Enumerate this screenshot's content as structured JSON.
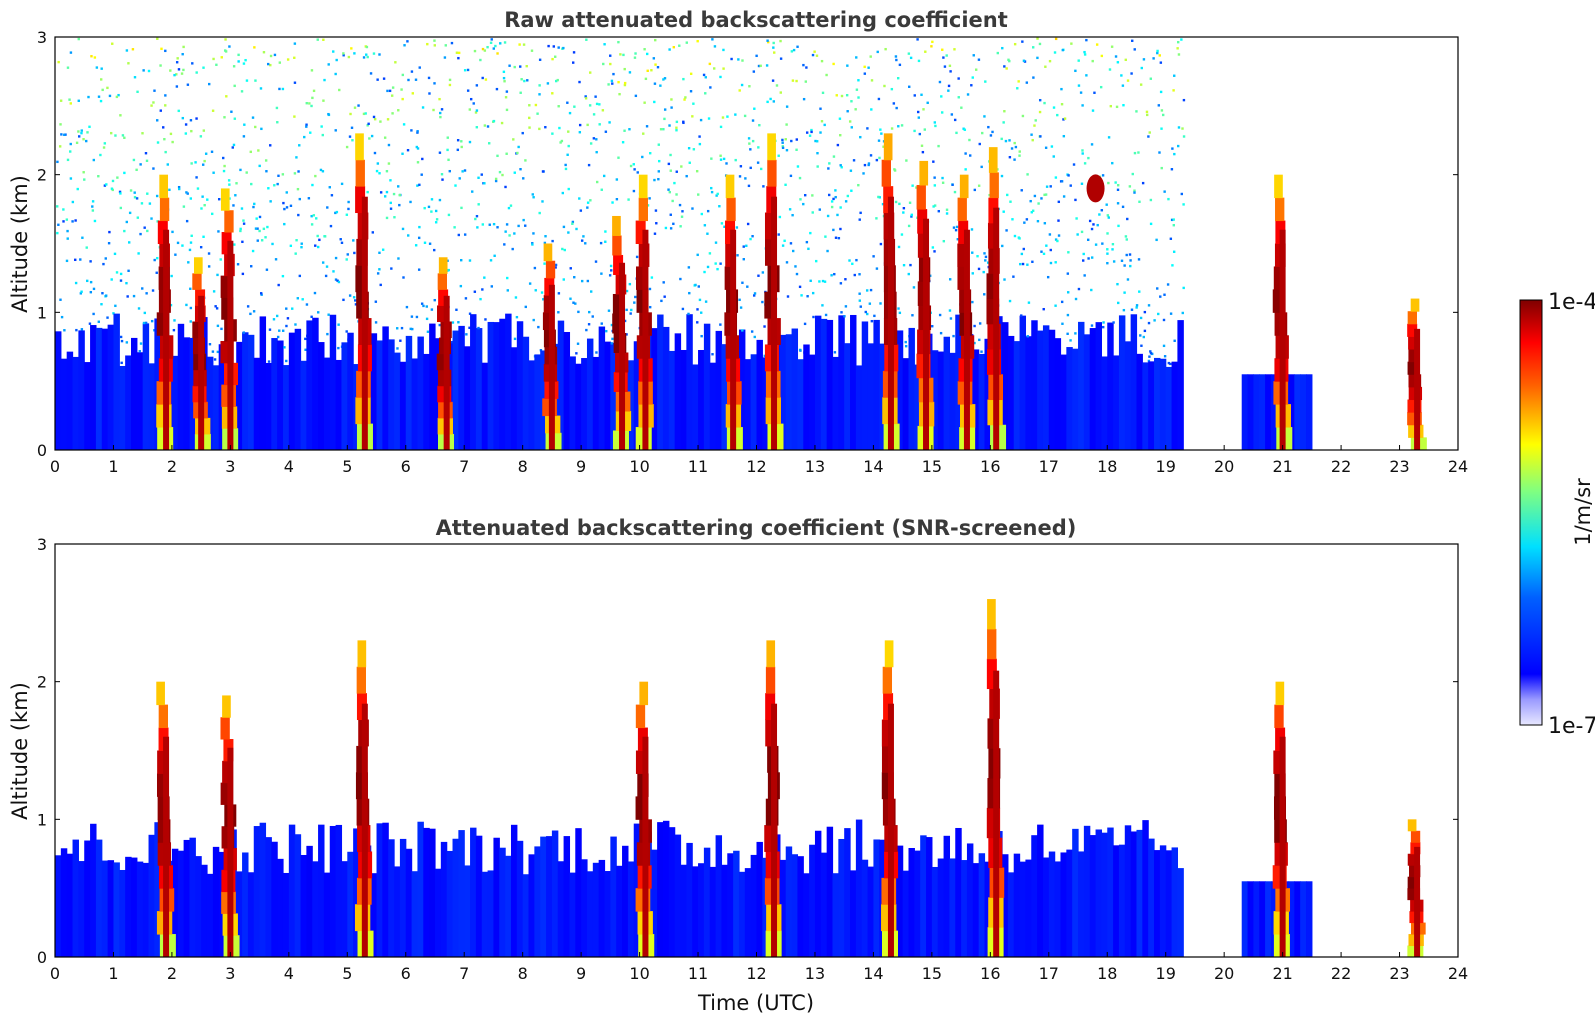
{
  "chart_data": [
    {
      "type": "heatmap",
      "title": "Raw attenuated backscattering coefficient",
      "xlabel": "",
      "ylabel": "Altitude (km)",
      "xlim": [
        0,
        24
      ],
      "ylim": [
        0,
        3
      ],
      "x_ticks": [
        "0",
        "1",
        "2",
        "3",
        "4",
        "5",
        "6",
        "7",
        "8",
        "9",
        "10",
        "11",
        "12",
        "13",
        "14",
        "15",
        "16",
        "17",
        "18",
        "19",
        "20",
        "21",
        "22",
        "23",
        "24"
      ],
      "y_ticks": [
        "0",
        "1",
        "2",
        "3"
      ],
      "screening": "raw",
      "scale": "log",
      "features": [
        {
          "kind": "boundary_layer",
          "x_start": 0,
          "x_end": 19.3,
          "top_km": 1.0
        },
        {
          "kind": "cloud_column",
          "x": 1.9,
          "base_km": 0,
          "top_km": 2.0
        },
        {
          "kind": "cloud_column",
          "x": 2.5,
          "base_km": 0,
          "top_km": 1.4
        },
        {
          "kind": "cloud_column",
          "x": 3.0,
          "base_km": 0,
          "top_km": 1.9
        },
        {
          "kind": "cloud_column",
          "x": 5.3,
          "base_km": 0,
          "top_km": 2.3
        },
        {
          "kind": "cloud_column",
          "x": 6.7,
          "base_km": 0,
          "top_km": 1.4
        },
        {
          "kind": "cloud_column",
          "x": 8.5,
          "base_km": 0,
          "top_km": 1.5
        },
        {
          "kind": "cloud_column",
          "x": 9.7,
          "base_km": 0,
          "top_km": 1.7
        },
        {
          "kind": "cloud_column",
          "x": 10.1,
          "base_km": 0,
          "top_km": 2.0
        },
        {
          "kind": "cloud_column",
          "x": 11.6,
          "base_km": 0,
          "top_km": 2.0
        },
        {
          "kind": "cloud_column",
          "x": 12.3,
          "base_km": 0,
          "top_km": 2.3
        },
        {
          "kind": "cloud_column",
          "x": 14.3,
          "base_km": 0,
          "top_km": 2.3
        },
        {
          "kind": "cloud_column",
          "x": 14.9,
          "base_km": 0,
          "top_km": 2.1
        },
        {
          "kind": "cloud_column",
          "x": 15.6,
          "base_km": 0,
          "top_km": 2.0
        },
        {
          "kind": "cloud_column",
          "x": 16.1,
          "base_km": 0,
          "top_km": 2.2
        },
        {
          "kind": "cloud_patch",
          "x": 17.8,
          "altitude_km": 1.9
        },
        {
          "kind": "cloud_column",
          "x": 21.0,
          "base_km": 0,
          "top_km": 2.0
        },
        {
          "kind": "cloud_column",
          "x": 23.3,
          "base_km": 0,
          "top_km": 1.1
        }
      ]
    },
    {
      "type": "heatmap",
      "title": "Attenuated backscattering coefficient (SNR-screened)",
      "xlabel": "Time (UTC)",
      "ylabel": "Altitude (km)",
      "xlim": [
        0,
        24
      ],
      "ylim": [
        0,
        3
      ],
      "x_ticks": [
        "0",
        "1",
        "2",
        "3",
        "4",
        "5",
        "6",
        "7",
        "8",
        "9",
        "10",
        "11",
        "12",
        "13",
        "14",
        "15",
        "16",
        "17",
        "18",
        "19",
        "20",
        "21",
        "22",
        "23",
        "24"
      ],
      "y_ticks": [
        "0",
        "1",
        "2",
        "3"
      ],
      "screening": "snr",
      "scale": "log",
      "features": [
        {
          "kind": "boundary_layer",
          "x_start": 0,
          "x_end": 19.3,
          "top_km": 1.0
        },
        {
          "kind": "cloud_column",
          "x": 1.9,
          "base_km": 0,
          "top_km": 2.0
        },
        {
          "kind": "cloud_column",
          "x": 3.0,
          "base_km": 0,
          "top_km": 1.9
        },
        {
          "kind": "cloud_column",
          "x": 5.3,
          "base_km": 0,
          "top_km": 2.3
        },
        {
          "kind": "cloud_column",
          "x": 10.1,
          "base_km": 0,
          "top_km": 2.0
        },
        {
          "kind": "cloud_column",
          "x": 12.3,
          "base_km": 0,
          "top_km": 2.3
        },
        {
          "kind": "cloud_column",
          "x": 14.3,
          "base_km": 0,
          "top_km": 2.3
        },
        {
          "kind": "cloud_column",
          "x": 16.1,
          "base_km": 0,
          "top_km": 2.6
        },
        {
          "kind": "cloud_column",
          "x": 21.0,
          "base_km": 0,
          "top_km": 2.0
        },
        {
          "kind": "cloud_column",
          "x": 23.3,
          "base_km": 0,
          "top_km": 1.0
        }
      ]
    }
  ],
  "colorbar": {
    "max_label": "1e-4",
    "min_label": "1e-7",
    "unit_label": "1/m/sr",
    "colormap": "jet",
    "scale": "log"
  },
  "colors": {
    "jet_dark_blue": "#00008f",
    "jet_blue": "#0000ff",
    "jet_cyan": "#00ffff",
    "jet_yellow": "#ffff00",
    "jet_red": "#ff0000",
    "jet_dark_red": "#800000",
    "title_gray": "#3a3a3a",
    "background": "#ffffff"
  }
}
